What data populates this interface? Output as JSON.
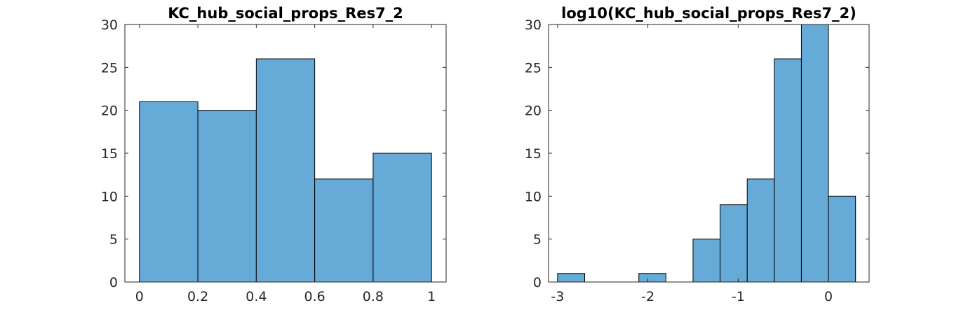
{
  "chart_data": [
    {
      "type": "bar",
      "title": "KC_hub_social_props_Res7_2",
      "bin_edges": [
        0,
        0.2,
        0.4,
        0.6,
        0.8,
        1
      ],
      "values": [
        21,
        20,
        26,
        12,
        15
      ],
      "xlim": [
        -0.05,
        1.05
      ],
      "ylim": [
        0,
        30
      ],
      "xticks": [
        0,
        0.2,
        0.4,
        0.6,
        0.8,
        1
      ],
      "xtick_labels": [
        "0",
        "0.2",
        "0.4",
        "0.6",
        "0.8",
        "1"
      ],
      "yticks": [
        0,
        5,
        10,
        15,
        20,
        25,
        30
      ],
      "ytick_labels": [
        "0",
        "5",
        "10",
        "15",
        "20",
        "25",
        "30"
      ],
      "bar_color": "#66aad7",
      "grid": false
    },
    {
      "type": "bar",
      "title": "log10(KC_hub_social_props_Res7_2)",
      "bin_edges": [
        -3.0,
        -2.7,
        -2.4,
        -2.1,
        -1.8,
        -1.5,
        -1.2,
        -0.9,
        -0.6,
        -0.3,
        0.0,
        0.3
      ],
      "values": [
        1,
        0,
        0,
        1,
        0,
        5,
        9,
        12,
        26,
        30,
        10
      ],
      "xlim": [
        -3.1,
        0.45
      ],
      "ylim": [
        0,
        30
      ],
      "xticks": [
        -3,
        -2,
        -1,
        0
      ],
      "xtick_labels": [
        "-3",
        "-2",
        "-1",
        "0"
      ],
      "yticks": [
        0,
        5,
        10,
        15,
        20,
        25,
        30
      ],
      "ytick_labels": [
        "0",
        "5",
        "10",
        "15",
        "20",
        "25",
        "30"
      ],
      "bar_color": "#66aad7",
      "grid": false
    }
  ]
}
